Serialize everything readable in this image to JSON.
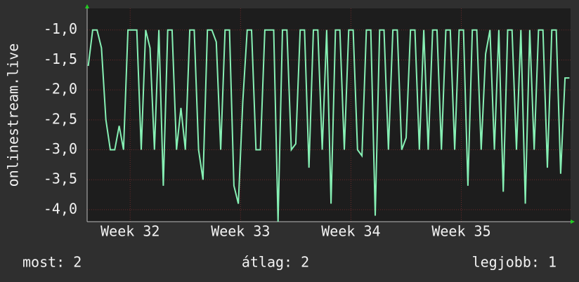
{
  "chart_data": {
    "type": "line",
    "y_label": "onlinestream.live",
    "xlim": [
      31.61,
      35.99
    ],
    "xticks": [
      {
        "value": 32,
        "label": "Week 32"
      },
      {
        "value": 33,
        "label": "Week 33"
      },
      {
        "value": 34,
        "label": "Week 34"
      },
      {
        "value": 35,
        "label": "Week 35"
      }
    ],
    "ylim": [
      -4.2,
      -0.64
    ],
    "yticks": [
      {
        "value": -1,
        "label": "-1,0"
      },
      {
        "value": -1.5,
        "label": "-1,5"
      },
      {
        "value": -2,
        "label": "-2,0"
      },
      {
        "value": -2.5,
        "label": "-2,5"
      },
      {
        "value": -3,
        "label": "-3,0"
      },
      {
        "value": -3.5,
        "label": "-3,5"
      },
      {
        "value": -4,
        "label": "-4,0"
      }
    ],
    "grid": true,
    "color": "#86f0b4",
    "x": [
      31.62,
      31.66,
      31.7,
      31.74,
      31.78,
      31.82,
      31.86,
      31.9,
      31.94,
      31.98,
      32.02,
      32.06,
      32.1,
      32.14,
      32.18,
      32.22,
      32.26,
      32.3,
      32.34,
      32.38,
      32.42,
      32.46,
      32.5,
      32.54,
      32.58,
      32.62,
      32.66,
      32.7,
      32.74,
      32.78,
      32.82,
      32.86,
      32.9,
      32.94,
      32.98,
      33.02,
      33.06,
      33.1,
      33.14,
      33.18,
      33.22,
      33.26,
      33.3,
      33.34,
      33.38,
      33.42,
      33.46,
      33.5,
      33.54,
      33.58,
      33.62,
      33.66,
      33.7,
      33.74,
      33.78,
      33.82,
      33.86,
      33.9,
      33.94,
      33.98,
      34.02,
      34.06,
      34.1,
      34.14,
      34.18,
      34.22,
      34.26,
      34.3,
      34.34,
      34.38,
      34.42,
      34.46,
      34.5,
      34.54,
      34.58,
      34.62,
      34.66,
      34.7,
      34.74,
      34.78,
      34.82,
      34.86,
      34.9,
      34.94,
      34.98,
      35.02,
      35.06,
      35.1,
      35.14,
      35.18,
      35.22,
      35.26,
      35.3,
      35.34,
      35.38,
      35.42,
      35.46,
      35.5,
      35.54,
      35.58,
      35.62,
      35.66,
      35.7,
      35.74,
      35.78,
      35.82,
      35.86,
      35.9,
      35.94,
      35.98
    ],
    "values": [
      -1.6,
      -1,
      -1,
      -1.3,
      -2.5,
      -3,
      -3,
      -2.6,
      -3,
      -1,
      -1,
      -1,
      -3,
      -1,
      -1.3,
      -3,
      -1,
      -3.6,
      -1,
      -1,
      -3,
      -2.3,
      -3,
      -1,
      -1,
      -3,
      -3.5,
      -1,
      -1,
      -1.2,
      -3,
      -1,
      -1,
      -3.6,
      -3.9,
      -2.2,
      -1,
      -1,
      -3,
      -3,
      -1,
      -1,
      -1,
      -4.2,
      -1,
      -1,
      -3,
      -2.9,
      -1,
      -1,
      -3.3,
      -1,
      -1,
      -3,
      -1,
      -3.9,
      -1,
      -1,
      -3,
      -1,
      -1,
      -3,
      -3.1,
      -1,
      -1,
      -4.1,
      -1,
      -1,
      -3,
      -1,
      -1,
      -3,
      -2.8,
      -1,
      -1,
      -3,
      -1,
      -3,
      -1,
      -1,
      -3,
      -1,
      -1,
      -3,
      -1,
      -1,
      -3.6,
      -1,
      -1,
      -3,
      -1.4,
      -1,
      -3,
      -1,
      -3.7,
      -1,
      -1,
      -3,
      -1,
      -3.9,
      -1,
      -3,
      -1,
      -1,
      -3.3,
      -1,
      -1,
      -3.4,
      -1.8,
      -1.8
    ],
    "footer": [
      "most: 2",
      "átlag: 2",
      "legjobb: 1"
    ]
  }
}
